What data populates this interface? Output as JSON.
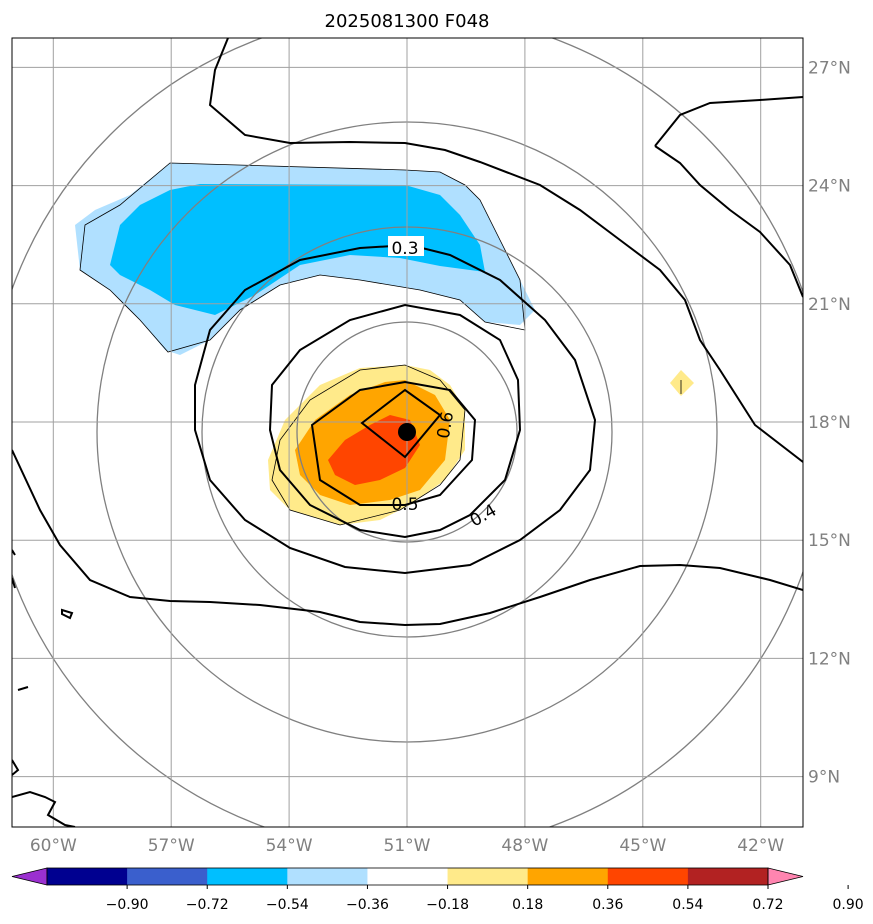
{
  "title": "2025081300 F048",
  "map": {
    "lon_range_deg": [
      -61,
      -41
    ],
    "lat_range_deg": [
      7.8,
      27.6
    ],
    "lon_gridlines": [
      {
        "lon": -60,
        "label": "60°W"
      },
      {
        "lon": -57,
        "label": "57°W"
      },
      {
        "lon": -54,
        "label": "54°W"
      },
      {
        "lon": -51,
        "label": "51°W"
      },
      {
        "lon": -48,
        "label": "48°W"
      },
      {
        "lon": -45,
        "label": "45°W"
      },
      {
        "lon": -42,
        "label": "42°W"
      }
    ],
    "lat_gridlines": [
      {
        "lat": 27,
        "label": "27°N"
      },
      {
        "lat": 24,
        "label": "24°N"
      },
      {
        "lat": 21,
        "label": "21°N"
      },
      {
        "lat": 18,
        "label": "18°N"
      },
      {
        "lat": 15,
        "label": "15°N"
      },
      {
        "lat": 12,
        "label": "12°N"
      },
      {
        "lat": 9,
        "label": "9°N"
      }
    ],
    "center": {
      "lon": -51.0,
      "lat": 17.8
    },
    "contour_labels": [
      {
        "text": "0.3",
        "lon": -51.0,
        "lat": 22.3
      },
      {
        "text": "0.4",
        "lon": -48.8,
        "lat": 15.7
      },
      {
        "text": "0.5",
        "lon": -51.0,
        "lat": 15.9
      },
      {
        "text": "0.6",
        "lon": -50.1,
        "lat": 17.8
      }
    ]
  },
  "colorbar": {
    "colors": [
      "#9b30d0",
      "#000090",
      "#3a5fcd",
      "#00bfff",
      "#b0e0ff",
      "#ffffff",
      "#ffea8a",
      "#ffa500",
      "#ff4500",
      "#b22222",
      "#ff85b0"
    ],
    "ticks": [
      "−0.90",
      "−0.72",
      "−0.54",
      "−0.36",
      "−0.18",
      "0.18",
      "0.36",
      "0.54",
      "0.72",
      "0.90"
    ],
    "extend": "both"
  }
}
